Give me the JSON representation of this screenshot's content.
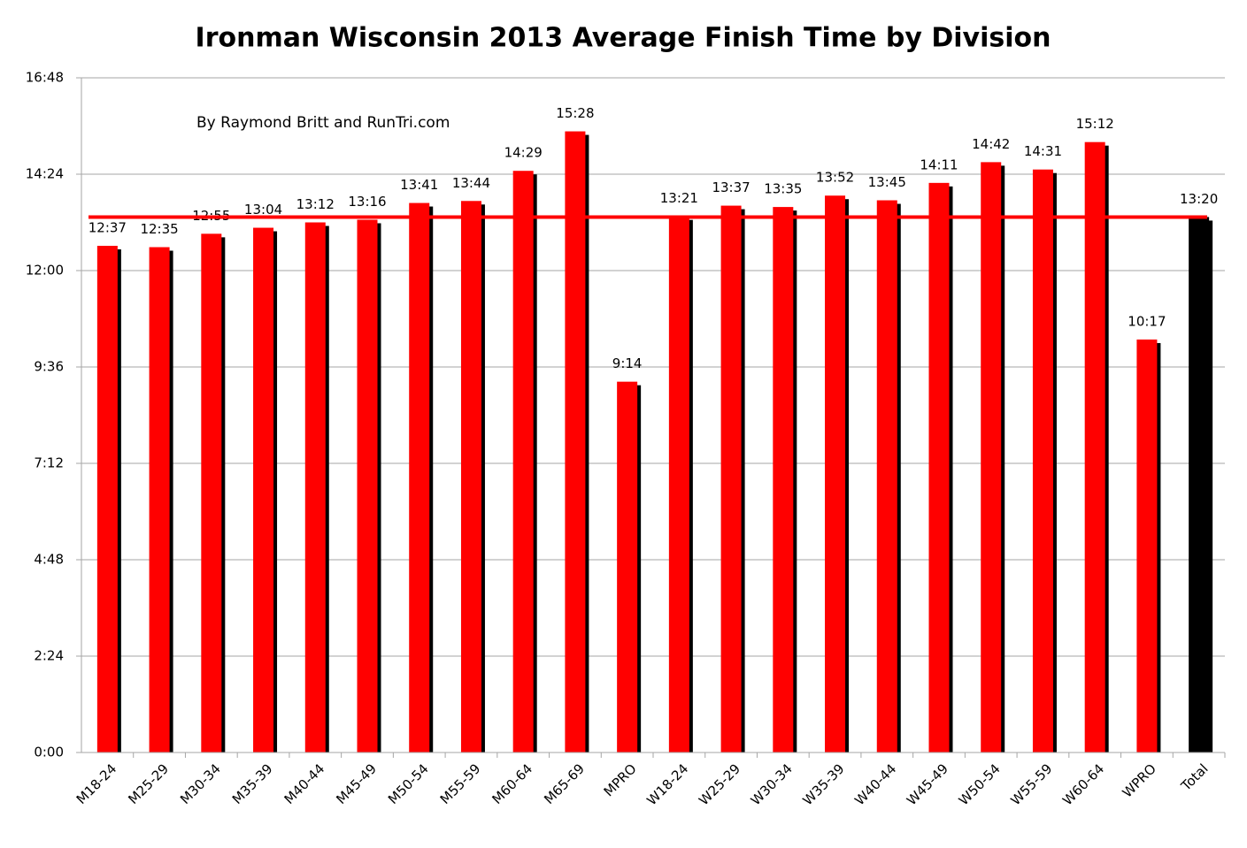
{
  "chart_data": {
    "type": "bar",
    "title": "Ironman Wisconsin 2013 Average Finish Time by Division",
    "annotation": "By Raymond Britt and RunTri.com",
    "categories": [
      "M18-24",
      "M25-29",
      "M30-34",
      "M35-39",
      "M40-44",
      "M45-49",
      "M50-54",
      "M55-59",
      "M60-64",
      "M65-69",
      "MPRO",
      "W18-24",
      "W25-29",
      "W30-34",
      "W35-39",
      "W40-44",
      "W45-49",
      "W50-54",
      "W55-59",
      "W60-64",
      "WPRO",
      "Total"
    ],
    "values": [
      757,
      755,
      775,
      784,
      792,
      796,
      821,
      824,
      869,
      928,
      554,
      801,
      817,
      815,
      832,
      825,
      851,
      882,
      871,
      912,
      617,
      800
    ],
    "value_labels": [
      "12:37",
      "12:35",
      "12:55",
      "13:04",
      "13:12",
      "13:16",
      "13:41",
      "13:44",
      "14:29",
      "15:28",
      "9:14",
      "13:21",
      "13:37",
      "13:35",
      "13:52",
      "13:45",
      "14:11",
      "14:42",
      "14:31",
      "15:12",
      "10:17",
      "13:20"
    ],
    "colors": [
      "#ff0000",
      "#ff0000",
      "#ff0000",
      "#ff0000",
      "#ff0000",
      "#ff0000",
      "#ff0000",
      "#ff0000",
      "#ff0000",
      "#ff0000",
      "#ff0000",
      "#ff0000",
      "#ff0000",
      "#ff0000",
      "#ff0000",
      "#ff0000",
      "#ff0000",
      "#ff0000",
      "#ff0000",
      "#ff0000",
      "#ff0000",
      "#000000"
    ],
    "shadow_color": "#000000",
    "reference_line_color": "#ff0000",
    "ylim": [
      0,
      1008
    ],
    "yticks": [
      {
        "value": 0,
        "label": "0:00"
      },
      {
        "value": 144,
        "label": "2:24"
      },
      {
        "value": 288,
        "label": "4:48"
      },
      {
        "value": 432,
        "label": "7:12"
      },
      {
        "value": 576,
        "label": "9:36"
      },
      {
        "value": 720,
        "label": "12:00"
      },
      {
        "value": 864,
        "label": "14:24"
      },
      {
        "value": 1008,
        "label": "16:48"
      }
    ],
    "grid": true
  }
}
